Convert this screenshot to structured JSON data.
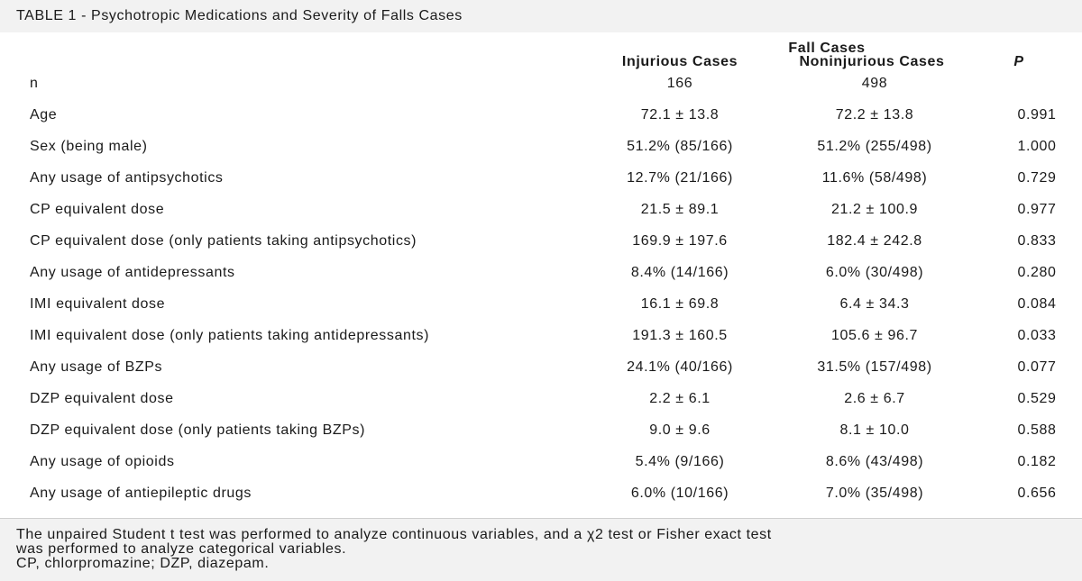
{
  "table": {
    "title": "TABLE 1 - Psychotropic Medications and Severity of Falls Cases",
    "group_header": "Fall Cases",
    "columns": {
      "injurious": "Injurious Cases",
      "noninjurious": "Noninjurious Cases",
      "p": "P"
    },
    "rows": [
      {
        "label": "n",
        "injurious": "166",
        "noninjurious": "498",
        "p": ""
      },
      {
        "label": "Age",
        "injurious": "72.1 ± 13.8",
        "noninjurious": "72.2 ± 13.8",
        "p": "0.991"
      },
      {
        "label": "Sex (being male)",
        "injurious": "51.2% (85/166)",
        "noninjurious": "51.2% (255/498)",
        "p": "1.000"
      },
      {
        "label": "Any usage of antipsychotics",
        "injurious": "12.7% (21/166)",
        "noninjurious": "11.6% (58/498)",
        "p": "0.729"
      },
      {
        "label": "CP equivalent dose",
        "injurious": "21.5 ± 89.1",
        "noninjurious": "21.2 ± 100.9",
        "p": "0.977"
      },
      {
        "label": "CP equivalent dose (only patients taking antipsychotics)",
        "injurious": "169.9 ± 197.6",
        "noninjurious": "182.4 ± 242.8",
        "p": "0.833"
      },
      {
        "label": "Any usage of antidepressants",
        "injurious": "8.4% (14/166)",
        "noninjurious": "6.0% (30/498)",
        "p": "0.280"
      },
      {
        "label": "IMI equivalent dose",
        "injurious": "16.1 ± 69.8",
        "noninjurious": "6.4 ± 34.3",
        "p": "0.084"
      },
      {
        "label": "IMI equivalent dose (only patients taking antidepressants)",
        "injurious": "191.3 ± 160.5",
        "noninjurious": "105.6 ± 96.7",
        "p": "0.033"
      },
      {
        "label": "Any usage of BZPs",
        "injurious": "24.1% (40/166)",
        "noninjurious": "31.5% (157/498)",
        "p": "0.077"
      },
      {
        "label": "DZP equivalent dose",
        "injurious": "2.2 ± 6.1",
        "noninjurious": "2.6 ± 6.7",
        "p": "0.529"
      },
      {
        "label": "DZP equivalent dose (only patients taking BZPs)",
        "injurious": "9.0 ± 9.6",
        "noninjurious": "8.1 ± 10.0",
        "p": "0.588"
      },
      {
        "label": "Any usage of opioids",
        "injurious": "5.4% (9/166)",
        "noninjurious": "8.6% (43/498)",
        "p": "0.182"
      },
      {
        "label": "Any usage of antiepileptic drugs",
        "injurious": "6.0% (10/166)",
        "noninjurious": "7.0% (35/498)",
        "p": "0.656"
      }
    ],
    "footnotes": [
      "The unpaired Student t test was performed to analyze continuous variables, and a χ2 test or Fisher exact test",
      "was performed to analyze categorical variables.",
      "CP, chlorpromazine; DZP, diazepam."
    ]
  }
}
